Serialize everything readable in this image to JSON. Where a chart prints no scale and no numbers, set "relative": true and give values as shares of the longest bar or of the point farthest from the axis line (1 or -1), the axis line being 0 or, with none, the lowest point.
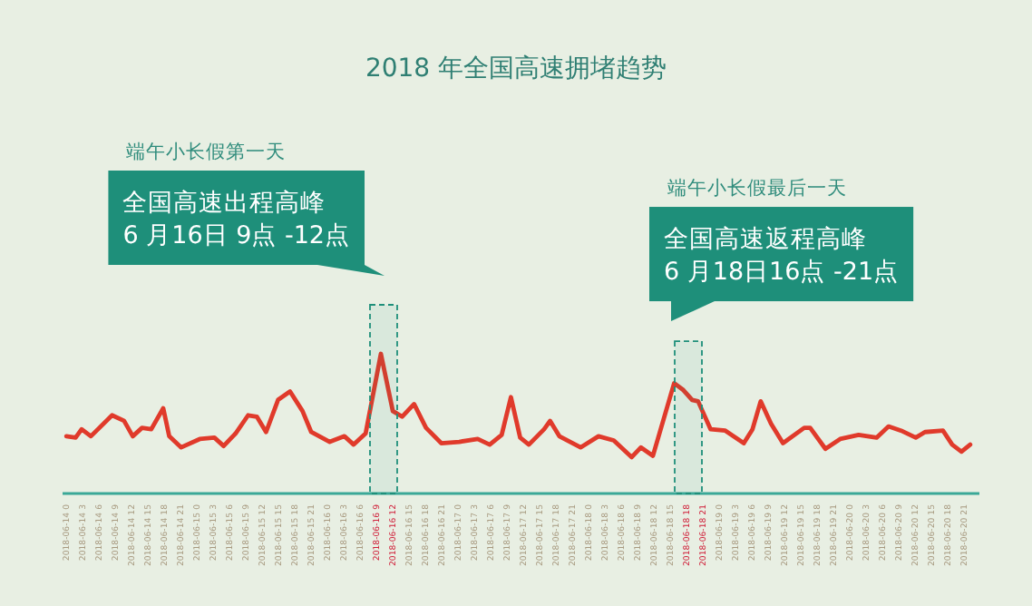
{
  "chart_data": {
    "type": "line",
    "title": "2018 年全国高速拥堵趋势",
    "relative": true,
    "annotations": [
      "端午小长假第一天",
      "端午小长假最后一天"
    ],
    "bands": [
      {
        "axis": "x",
        "from": "2018-06-16T08:00",
        "to": "2018-06-16T13:00",
        "label": "全国高速出程高峰\n6 月16日 9点 -12点",
        "color": "#1e8f7a"
      },
      {
        "axis": "x",
        "from": "2018-06-18T16:00",
        "to": "2018-06-18T21:00",
        "label": "全国高速返程高峰\n6 月18日16点 -21点",
        "color": "#1e8f7a"
      }
    ],
    "xlim": [
      "2018-06-13T23:30",
      "2018-06-21T00:00"
    ],
    "xticks": [
      {
        "value": "2018-06-14T00:00",
        "label": "2018-06-14 0"
      },
      {
        "value": "2018-06-14T03:00",
        "label": "2018-06-14 3"
      },
      {
        "value": "2018-06-14T06:00",
        "label": "2018-06-14 6"
      },
      {
        "value": "2018-06-14T09:00",
        "label": "2018-06-14 9"
      },
      {
        "value": "2018-06-14T12:00",
        "label": "2018-06-14 12"
      },
      {
        "value": "2018-06-14T15:00",
        "label": "2018-06-14 15"
      },
      {
        "value": "2018-06-14T18:00",
        "label": "2018-06-14 18"
      },
      {
        "value": "2018-06-14T21:00",
        "label": "2018-06-14 21"
      },
      {
        "value": "2018-06-15T00:00",
        "label": "2018-06-15 0"
      },
      {
        "value": "2018-06-15T03:00",
        "label": "2018-06-15 3"
      },
      {
        "value": "2018-06-15T06:00",
        "label": "2018-06-15 6"
      },
      {
        "value": "2018-06-15T09:00",
        "label": "2018-06-15 9"
      },
      {
        "value": "2018-06-15T12:00",
        "label": "2018-06-15 12"
      },
      {
        "value": "2018-06-15T15:00",
        "label": "2018-06-15 15"
      },
      {
        "value": "2018-06-15T18:00",
        "label": "2018-06-15 18"
      },
      {
        "value": "2018-06-15T21:00",
        "label": "2018-06-15 21"
      },
      {
        "value": "2018-06-16T00:00",
        "label": "2018-06-16 0"
      },
      {
        "value": "2018-06-16T03:00",
        "label": "2018-06-16 3"
      },
      {
        "value": "2018-06-16T06:00",
        "label": "2018-06-16 6"
      },
      {
        "value": "2018-06-16T09:00",
        "label": "2018-06-16 9"
      },
      {
        "value": "2018-06-16T12:00",
        "label": "2018-06-16 12"
      },
      {
        "value": "2018-06-16T15:00",
        "label": "2018-06-16 15"
      },
      {
        "value": "2018-06-16T18:00",
        "label": "2018-06-16 18"
      },
      {
        "value": "2018-06-16T21:00",
        "label": "2018-06-16 21"
      },
      {
        "value": "2018-06-17T00:00",
        "label": "2018-06-17 0"
      },
      {
        "value": "2018-06-17T03:00",
        "label": "2018-06-17 3"
      },
      {
        "value": "2018-06-17T06:00",
        "label": "2018-06-17 6"
      },
      {
        "value": "2018-06-17T09:00",
        "label": "2018-06-17 9"
      },
      {
        "value": "2018-06-17T12:00",
        "label": "2018-06-17 12"
      },
      {
        "value": "2018-06-17T15:00",
        "label": "2018-06-17 15"
      },
      {
        "value": "2018-06-17T18:00",
        "label": "2018-06-17 18"
      },
      {
        "value": "2018-06-17T21:00",
        "label": "2018-06-17 21"
      },
      {
        "value": "2018-06-18T00:00",
        "label": "2018-06-18 0"
      },
      {
        "value": "2018-06-18T03:00",
        "label": "2018-06-18 3"
      },
      {
        "value": "2018-06-18T06:00",
        "label": "2018-06-18 6"
      },
      {
        "value": "2018-06-18T09:00",
        "label": "2018-06-18 9"
      },
      {
        "value": "2018-06-18T12:00",
        "label": "2018-06-18 12"
      },
      {
        "value": "2018-06-18T15:00",
        "label": "2018-06-18 15"
      },
      {
        "value": "2018-06-18T18:00",
        "label": "2018-06-18 18"
      },
      {
        "value": "2018-06-18T21:00",
        "label": "2018-06-18 21"
      },
      {
        "value": "2018-06-19T00:00",
        "label": "2018-06-19 0"
      },
      {
        "value": "2018-06-19T03:00",
        "label": "2018-06-19 3"
      },
      {
        "value": "2018-06-19T06:00",
        "label": "2018-06-19 6"
      },
      {
        "value": "2018-06-19T09:00",
        "label": "2018-06-19 9"
      },
      {
        "value": "2018-06-19T12:00",
        "label": "2018-06-19 12"
      },
      {
        "value": "2018-06-19T15:00",
        "label": "2018-06-19 15"
      },
      {
        "value": "2018-06-19T18:00",
        "label": "2018-06-19 18"
      },
      {
        "value": "2018-06-19T21:00",
        "label": "2018-06-19 21"
      },
      {
        "value": "2018-06-20T00:00",
        "label": "2018-06-20 0"
      },
      {
        "value": "2018-06-20T03:00",
        "label": "2018-06-20 3"
      },
      {
        "value": "2018-06-20T06:00",
        "label": "2018-06-20 6"
      },
      {
        "value": "2018-06-20T09:00",
        "label": "2018-06-20 9"
      },
      {
        "value": "2018-06-20T12:00",
        "label": "2018-06-20 12"
      },
      {
        "value": "2018-06-20T15:00",
        "label": "2018-06-20 15"
      },
      {
        "value": "2018-06-20T18:00",
        "label": "2018-06-20 18"
      },
      {
        "value": "2018-06-20T21:00",
        "label": "2018-06-20 21"
      }
    ],
    "x": [
      "2018-06-14T00:12",
      "2018-06-14T01:54",
      "2018-06-14T03:00",
      "2018-06-14T04:42",
      "2018-06-14T08:36",
      "2018-06-14T10:48",
      "2018-06-14T12:24",
      "2018-06-14T14:06",
      "2018-06-14T15:48",
      "2018-06-14T18:00",
      "2018-06-14T19:06",
      "2018-06-14T21:18",
      "2018-06-15T00:42",
      "2018-06-15T03:24",
      "2018-06-15T05:06",
      "2018-06-15T07:18",
      "2018-06-15T09:36",
      "2018-06-15T11:12",
      "2018-06-15T12:54",
      "2018-06-15T15:06",
      "2018-06-15T17:18",
      "2018-06-15T19:36",
      "2018-06-15T21:12",
      "2018-06-16T00:36",
      "2018-06-16T03:18",
      "2018-06-16T05:00",
      "2018-06-16T07:12",
      "2018-06-16T10:00",
      "2018-06-16T12:12",
      "2018-06-16T13:54",
      "2018-06-16T16:06",
      "2018-06-16T18:18",
      "2018-06-16T21:06",
      "2018-06-17T00:24",
      "2018-06-17T03:48",
      "2018-06-17T06:00",
      "2018-06-17T08:12",
      "2018-06-17T09:54",
      "2018-06-17T11:36",
      "2018-06-17T13:12",
      "2018-06-17T16:00",
      "2018-06-17T17:06",
      "2018-06-17T18:48",
      "2018-06-17T22:42",
      "2018-06-18T02:00",
      "2018-06-18T04:48",
      "2018-06-18T08:06",
      "2018-06-18T09:48",
      "2018-06-18T12:00",
      "2018-06-18T15:54",
      "2018-06-18T17:36",
      "2018-06-18T19:12",
      "2018-06-18T20:18",
      "2018-06-18T22:36",
      "2018-06-19T01:18",
      "2018-06-19T04:42",
      "2018-06-19T06:18",
      "2018-06-19T07:48",
      "2018-06-19T09:42",
      "2018-06-19T11:54",
      "2018-06-19T15:48",
      "2018-06-19T16:54",
      "2018-06-19T19:42",
      "2018-06-19T22:24",
      "2018-06-20T01:48",
      "2018-06-20T05:06",
      "2018-06-20T07:18",
      "2018-06-20T09:36",
      "2018-06-20T12:18",
      "2018-06-20T14:00",
      "2018-06-20T17:18",
      "2018-06-20T19:00",
      "2018-06-20T20:42",
      "2018-06-20T22:18"
    ],
    "series": [
      {
        "color": "#e03a2b",
        "values": [
          0.41,
          0.4,
          0.46,
          0.41,
          0.56,
          0.52,
          0.41,
          0.47,
          0.46,
          0.61,
          0.41,
          0.33,
          0.39,
          0.4,
          0.34,
          0.43,
          0.56,
          0.55,
          0.44,
          0.67,
          0.73,
          0.59,
          0.44,
          0.37,
          0.41,
          0.35,
          0.43,
          1.0,
          0.59,
          0.55,
          0.64,
          0.47,
          0.36,
          0.37,
          0.39,
          0.35,
          0.42,
          0.69,
          0.4,
          0.35,
          0.46,
          0.52,
          0.41,
          0.33,
          0.41,
          0.38,
          0.26,
          0.33,
          0.27,
          0.79,
          0.74,
          0.67,
          0.66,
          0.46,
          0.45,
          0.36,
          0.46,
          0.66,
          0.5,
          0.36,
          0.47,
          0.47,
          0.32,
          0.39,
          0.42,
          0.4,
          0.48,
          0.45,
          0.4,
          0.44,
          0.45,
          0.35,
          0.3,
          0.35
        ]
      }
    ]
  }
}
